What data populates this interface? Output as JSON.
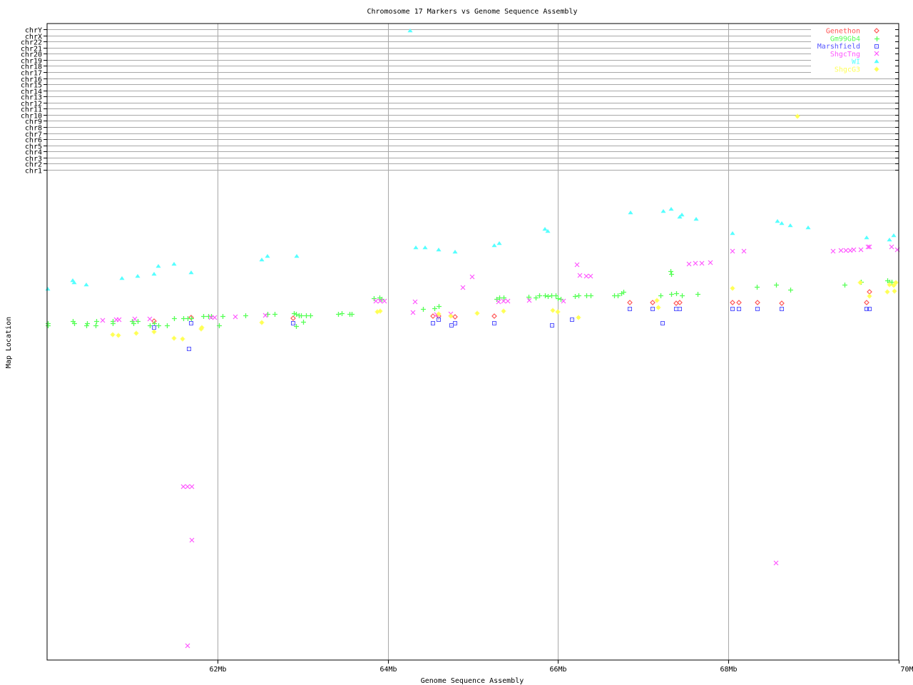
{
  "chart_data": {
    "type": "scatter",
    "title": "Chromosome 17 Markers vs Genome Sequence Assembly",
    "xlabel": "Genome Sequence Assembly",
    "ylabel": "Map Location",
    "xlim": [
      60,
      70
    ],
    "x_unit": "Mb",
    "x_ticks": [
      "62Mb",
      "64Mb",
      "66Mb",
      "68Mb",
      "70Mb"
    ],
    "x_tick_values": [
      62,
      64,
      66,
      68,
      70
    ],
    "ylim": [
      0,
      100
    ],
    "y_note_units": "relative map position within chr17 (unlabeled)",
    "chromosome_rows": [
      "chr1",
      "chr2",
      "chr3",
      "chr4",
      "chr5",
      "chr6",
      "chr7",
      "chr8",
      "chr9",
      "chr10",
      "chr11",
      "chr12",
      "chr13",
      "chr14",
      "chr15",
      "chr16",
      "chr17",
      "chr18",
      "chr19",
      "chr20",
      "chr21",
      "chr22",
      "chrX",
      "chrY"
    ],
    "grid": true,
    "legend_position": "top-right",
    "series": [
      {
        "name": "Genethon",
        "color": "#ff5555",
        "marker": "diamond",
        "points": [
          [
            61.26,
            69.1
          ],
          [
            61.69,
            69.9
          ],
          [
            62.89,
            69.7
          ],
          [
            64.53,
            70.2
          ],
          [
            64.6,
            70.2
          ],
          [
            64.79,
            70.0
          ],
          [
            65.25,
            70.2
          ],
          [
            66.84,
            72.9
          ],
          [
            67.11,
            72.9
          ],
          [
            67.39,
            72.8
          ],
          [
            67.43,
            72.9
          ],
          [
            68.05,
            72.9
          ],
          [
            68.12,
            72.9
          ],
          [
            68.34,
            72.9
          ],
          [
            68.63,
            72.8
          ],
          [
            69.66,
            75.1
          ],
          [
            69.62,
            72.9
          ]
        ]
      },
      {
        "name": "Gm99Gb4",
        "color": "#55ff55",
        "marker": "plus",
        "points": [
          [
            60.01,
            68.7
          ],
          [
            60.01,
            68.3
          ],
          [
            60.3,
            69.1
          ],
          [
            60.32,
            68.7
          ],
          [
            60.47,
            68.7
          ],
          [
            60.46,
            68.3
          ],
          [
            60.58,
            69.1
          ],
          [
            60.57,
            68.3
          ],
          [
            60.77,
            69.1
          ],
          [
            60.77,
            68.7
          ],
          [
            61.0,
            69.1
          ],
          [
            61.01,
            68.7
          ],
          [
            61.06,
            69.1
          ],
          [
            61.21,
            68.3
          ],
          [
            61.26,
            68.7
          ],
          [
            61.31,
            68.3
          ],
          [
            61.41,
            68.3
          ],
          [
            61.49,
            69.7
          ],
          [
            61.6,
            69.7
          ],
          [
            61.65,
            69.7
          ],
          [
            61.69,
            69.7
          ],
          [
            61.83,
            70.2
          ],
          [
            61.89,
            70.2
          ],
          [
            61.93,
            70.2
          ],
          [
            62.02,
            68.3
          ],
          [
            62.06,
            70.2
          ],
          [
            62.33,
            70.3
          ],
          [
            62.59,
            70.6
          ],
          [
            62.67,
            70.6
          ],
          [
            62.9,
            70.7
          ],
          [
            62.92,
            70.6
          ],
          [
            62.96,
            70.3
          ],
          [
            62.98,
            70.3
          ],
          [
            63.04,
            70.3
          ],
          [
            63.09,
            70.3
          ],
          [
            63.01,
            69.0
          ],
          [
            62.92,
            68.1
          ],
          [
            63.42,
            70.6
          ],
          [
            63.46,
            70.7
          ],
          [
            63.55,
            70.6
          ],
          [
            63.58,
            70.6
          ],
          [
            63.84,
            73.8
          ],
          [
            63.9,
            73.9
          ],
          [
            63.93,
            73.7
          ],
          [
            64.41,
            71.6
          ],
          [
            64.55,
            71.8
          ],
          [
            64.6,
            72.2
          ],
          [
            65.28,
            73.7
          ],
          [
            65.31,
            73.9
          ],
          [
            65.36,
            73.9
          ],
          [
            65.65,
            74.1
          ],
          [
            65.74,
            73.9
          ],
          [
            65.78,
            74.4
          ],
          [
            65.85,
            74.4
          ],
          [
            65.88,
            74.2
          ],
          [
            65.92,
            74.4
          ],
          [
            65.97,
            74.4
          ],
          [
            66.0,
            73.8
          ],
          [
            66.03,
            73.7
          ],
          [
            66.2,
            74.2
          ],
          [
            66.24,
            74.4
          ],
          [
            66.33,
            74.4
          ],
          [
            66.38,
            74.4
          ],
          [
            66.66,
            74.4
          ],
          [
            66.7,
            74.4
          ],
          [
            66.74,
            74.8
          ],
          [
            66.77,
            75.1
          ],
          [
            67.2,
            74.4
          ],
          [
            67.32,
            79.3
          ],
          [
            67.33,
            78.7
          ],
          [
            67.33,
            74.7
          ],
          [
            67.39,
            74.8
          ],
          [
            67.45,
            74.4
          ],
          [
            67.64,
            74.7
          ],
          [
            68.33,
            76.1
          ],
          [
            68.56,
            76.6
          ],
          [
            68.73,
            75.5
          ],
          [
            69.36,
            76.6
          ],
          [
            69.56,
            77.1
          ],
          [
            69.87,
            77.4
          ],
          [
            69.89,
            77.1
          ],
          [
            69.92,
            77.1
          ]
        ]
      },
      {
        "name": "Marshfield",
        "color": "#5555ff",
        "marker": "square",
        "points": [
          [
            61.26,
            67.8
          ],
          [
            61.69,
            68.7
          ],
          [
            61.67,
            63.5
          ],
          [
            62.89,
            68.7
          ],
          [
            64.53,
            68.7
          ],
          [
            64.6,
            69.4
          ],
          [
            64.75,
            68.3
          ],
          [
            64.79,
            68.7
          ],
          [
            65.25,
            68.7
          ],
          [
            65.93,
            68.3
          ],
          [
            66.16,
            69.4
          ],
          [
            66.84,
            71.6
          ],
          [
            67.11,
            71.6
          ],
          [
            67.23,
            68.7
          ],
          [
            67.39,
            71.6
          ],
          [
            67.43,
            71.6
          ],
          [
            68.05,
            71.6
          ],
          [
            68.12,
            71.6
          ],
          [
            68.34,
            71.6
          ],
          [
            68.63,
            71.6
          ],
          [
            69.62,
            71.6
          ],
          [
            69.66,
            71.6
          ]
        ]
      },
      {
        "name": "ShgcTng",
        "color": "#ff55ff",
        "marker": "cross",
        "points": [
          [
            60.65,
            69.3
          ],
          [
            60.81,
            69.4
          ],
          [
            60.85,
            69.4
          ],
          [
            61.03,
            69.6
          ],
          [
            61.21,
            69.6
          ],
          [
            61.93,
            69.9
          ],
          [
            61.97,
            69.9
          ],
          [
            62.21,
            70.0
          ],
          [
            62.56,
            70.3
          ],
          [
            63.86,
            73.2
          ],
          [
            63.91,
            73.2
          ],
          [
            63.96,
            73.2
          ],
          [
            64.32,
            73.1
          ],
          [
            64.3,
            70.9
          ],
          [
            64.57,
            70.5
          ],
          [
            64.74,
            70.6
          ],
          [
            64.88,
            76.0
          ],
          [
            64.99,
            78.2
          ],
          [
            65.3,
            73.1
          ],
          [
            65.36,
            73.2
          ],
          [
            65.41,
            73.2
          ],
          [
            65.66,
            73.4
          ],
          [
            66.06,
            73.2
          ],
          [
            66.22,
            80.6
          ],
          [
            66.26,
            78.5
          ],
          [
            66.33,
            78.3
          ],
          [
            66.38,
            78.3
          ],
          [
            67.54,
            80.8
          ],
          [
            67.61,
            80.9
          ],
          [
            67.69,
            80.9
          ],
          [
            67.79,
            81.1
          ],
          [
            68.05,
            83.4
          ],
          [
            68.18,
            83.4
          ],
          [
            69.23,
            83.4
          ],
          [
            69.32,
            83.6
          ],
          [
            69.38,
            83.6
          ],
          [
            69.43,
            83.6
          ],
          [
            69.47,
            83.7
          ],
          [
            69.56,
            83.7
          ],
          [
            69.64,
            84.3
          ],
          [
            69.66,
            84.3
          ],
          [
            69.92,
            84.3
          ],
          [
            69.98,
            83.7
          ],
          [
            61.6,
            35.4
          ],
          [
            61.65,
            35.4
          ],
          [
            61.7,
            35.4
          ],
          [
            61.7,
            24.5
          ],
          [
            61.65,
            2.9
          ],
          [
            68.56,
            19.8
          ]
        ]
      },
      {
        "name": "WI",
        "color": "#55ffff",
        "marker": "triangle",
        "points": [
          [
            60.01,
            75.7
          ],
          [
            60.3,
            77.4
          ],
          [
            60.32,
            77.0
          ],
          [
            60.46,
            76.6
          ],
          [
            60.88,
            77.9
          ],
          [
            61.06,
            78.3
          ],
          [
            61.26,
            78.7
          ],
          [
            61.31,
            80.3
          ],
          [
            61.49,
            80.8
          ],
          [
            61.69,
            79.0
          ],
          [
            62.52,
            81.7
          ],
          [
            62.59,
            82.4
          ],
          [
            62.93,
            82.4
          ],
          [
            64.33,
            84.1
          ],
          [
            64.44,
            84.1
          ],
          [
            64.6,
            83.7
          ],
          [
            64.79,
            83.3
          ],
          [
            65.25,
            84.6
          ],
          [
            65.31,
            85.0
          ],
          [
            65.85,
            87.9
          ],
          [
            65.88,
            87.5
          ],
          [
            66.85,
            91.3
          ],
          [
            67.24,
            91.6
          ],
          [
            67.33,
            92.0
          ],
          [
            67.45,
            90.8
          ],
          [
            67.43,
            90.4
          ],
          [
            67.62,
            90.0
          ],
          [
            68.05,
            87.0
          ],
          [
            68.58,
            89.5
          ],
          [
            68.63,
            89.1
          ],
          [
            68.73,
            88.6
          ],
          [
            68.94,
            88.2
          ],
          [
            69.62,
            86.2
          ],
          [
            69.89,
            85.7
          ],
          [
            69.94,
            86.6
          ]
        ],
        "chr_points": [
          [
            64.26,
            "chrY"
          ]
        ]
      },
      {
        "name": "ShgcG3",
        "color": "#ffff55",
        "marker": "star",
        "points": [
          [
            60.77,
            66.4
          ],
          [
            60.84,
            66.2
          ],
          [
            61.05,
            66.7
          ],
          [
            61.26,
            67.0
          ],
          [
            61.49,
            65.6
          ],
          [
            61.59,
            65.5
          ],
          [
            61.82,
            67.8
          ],
          [
            61.81,
            67.5
          ],
          [
            62.52,
            68.9
          ],
          [
            63.88,
            71.0
          ],
          [
            63.91,
            71.2
          ],
          [
            64.6,
            70.6
          ],
          [
            64.74,
            70.2
          ],
          [
            65.05,
            70.7
          ],
          [
            65.36,
            71.2
          ],
          [
            65.94,
            71.3
          ],
          [
            66.0,
            71.0
          ],
          [
            66.24,
            69.9
          ],
          [
            67.16,
            73.4
          ],
          [
            67.18,
            71.9
          ],
          [
            68.05,
            75.8
          ],
          [
            69.55,
            77.0
          ],
          [
            69.66,
            74.2
          ],
          [
            69.87,
            75.1
          ],
          [
            69.89,
            76.6
          ],
          [
            69.94,
            76.4
          ],
          [
            69.95,
            75.3
          ],
          [
            69.97,
            77.0
          ]
        ],
        "chr_points": [
          [
            68.81,
            "chr10"
          ]
        ]
      }
    ]
  }
}
